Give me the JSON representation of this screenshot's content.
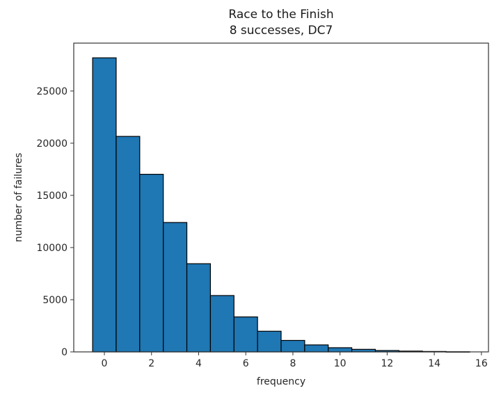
{
  "chart_data": {
    "type": "bar",
    "title": "Race to the Finish",
    "subtitle": "8 successes, DC7",
    "xlabel": "frequency",
    "ylabel": "number of failures",
    "categories": [
      0,
      1,
      2,
      3,
      4,
      5,
      6,
      7,
      8,
      9,
      10,
      11,
      12,
      13,
      14,
      15
    ],
    "values": [
      28180,
      20650,
      17020,
      12400,
      8450,
      5400,
      3350,
      1980,
      1100,
      670,
      400,
      245,
      130,
      75,
      40,
      10
    ],
    "bin_width": 1,
    "xlim": [
      -1.3,
      16.3
    ],
    "ylim": [
      0,
      29590
    ],
    "xticks": [
      0,
      2,
      4,
      6,
      8,
      10,
      12,
      14,
      16
    ],
    "yticks": [
      0,
      5000,
      10000,
      15000,
      20000,
      25000
    ],
    "grid": false,
    "legend": null,
    "bar_color": "#1f77b4",
    "edge_color": "#000000"
  }
}
